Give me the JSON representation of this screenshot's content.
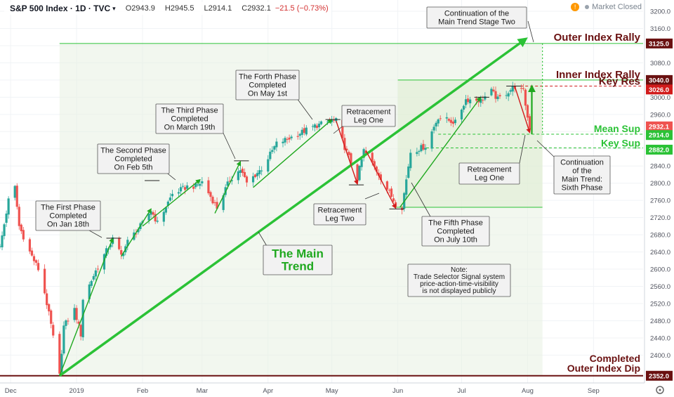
{
  "header": {
    "symbol": "S&P 500 Index · 1D · TVC",
    "open": "O2943.9",
    "high": "H2945.5",
    "low": "L2914.1",
    "close": "C2932.1",
    "change": "−21.5 (−0.73%)",
    "market_status": "Market Closed",
    "chevron_icon": "chevron-down-icon",
    "info_icon": "exclamation-icon"
  },
  "colors": {
    "up": "#26a69a",
    "down": "#ef5350",
    "trend": "#2bc236",
    "arrow_green": "#1fa81f",
    "arrow_red": "#d11b1b",
    "level": "#6a1111",
    "shade": "#e8f1e2"
  },
  "chart_data": {
    "type": "candlestick",
    "x_axis": {
      "start_date": "2018-11-26",
      "ticks": [
        {
          "label": "Dec",
          "date": "2018-12-01"
        },
        {
          "label": "2019",
          "date": "2019-01-01"
        },
        {
          "label": "Feb",
          "date": "2019-02-01"
        },
        {
          "label": "Mar",
          "date": "2019-03-01"
        },
        {
          "label": "Apr",
          "date": "2019-04-01"
        },
        {
          "label": "May",
          "date": "2019-05-01"
        },
        {
          "label": "Jun",
          "date": "2019-06-01"
        },
        {
          "label": "Jul",
          "date": "2019-07-01"
        },
        {
          "label": "Aug",
          "date": "2019-08-01"
        },
        {
          "label": "Sep",
          "date": "2019-09-01"
        }
      ]
    },
    "y_axis": {
      "ylim": [
        2305,
        3225
      ],
      "ticks": [
        2400,
        2440,
        2480,
        2520,
        2560,
        2600,
        2640,
        2680,
        2720,
        2760,
        2800,
        2840,
        2880,
        2920,
        2960,
        3000,
        3040,
        3080,
        3120,
        3160,
        3200
      ]
    },
    "price_path": [
      [
        "2018-11-26",
        2650
      ],
      [
        "2018-11-30",
        2760
      ],
      [
        "2018-12-03",
        2790
      ],
      [
        "2018-12-05",
        2700
      ],
      [
        "2018-12-10",
        2640
      ],
      [
        "2018-12-14",
        2600
      ],
      [
        "2018-12-17",
        2545
      ],
      [
        "2018-12-20",
        2470
      ],
      [
        "2018-12-24",
        2352
      ],
      [
        "2018-12-26",
        2467
      ],
      [
        "2018-12-31",
        2506
      ],
      [
        "2019-01-03",
        2448
      ],
      [
        "2019-01-04",
        2531
      ],
      [
        "2019-01-10",
        2596
      ],
      [
        "2019-01-18",
        2670
      ],
      [
        "2019-01-22",
        2632
      ],
      [
        "2019-01-25",
        2664
      ],
      [
        "2019-02-01",
        2706
      ],
      [
        "2019-02-05",
        2737
      ],
      [
        "2019-02-08",
        2707
      ],
      [
        "2019-02-15",
        2775
      ],
      [
        "2019-02-22",
        2792
      ],
      [
        "2019-02-26",
        2793
      ],
      [
        "2019-03-01",
        2803
      ],
      [
        "2019-03-08",
        2743
      ],
      [
        "2019-03-14",
        2808
      ],
      [
        "2019-03-19",
        2832
      ],
      [
        "2019-03-22",
        2800
      ],
      [
        "2019-03-29",
        2834
      ],
      [
        "2019-04-05",
        2892
      ],
      [
        "2019-04-12",
        2907
      ],
      [
        "2019-04-23",
        2933
      ],
      [
        "2019-05-01",
        2945
      ],
      [
        "2019-05-03",
        2945
      ],
      [
        "2019-05-07",
        2884
      ],
      [
        "2019-05-13",
        2812
      ],
      [
        "2019-05-16",
        2876
      ],
      [
        "2019-05-23",
        2822
      ],
      [
        "2019-05-31",
        2752
      ],
      [
        "2019-06-03",
        2744
      ],
      [
        "2019-06-07",
        2873
      ],
      [
        "2019-06-14",
        2886
      ],
      [
        "2019-06-20",
        2954
      ],
      [
        "2019-06-28",
        2941
      ],
      [
        "2019-07-03",
        2995
      ],
      [
        "2019-07-10",
        2993
      ],
      [
        "2019-07-15",
        3014
      ],
      [
        "2019-07-18",
        2995
      ],
      [
        "2019-07-26",
        3025
      ],
      [
        "2019-07-30",
        3013
      ],
      [
        "2019-08-01",
        2953
      ],
      [
        "2019-08-02",
        2932
      ]
    ],
    "levels": [
      {
        "name": "Outer Index Rally",
        "value": 3125.0,
        "badge": "3125.0"
      },
      {
        "name": "Inner Index Rally",
        "value": 3040.0,
        "badge": "3040.0"
      },
      {
        "name": "Key Res",
        "value": 3026.0,
        "badge": "3026.0"
      },
      {
        "name": "Mean Sup",
        "value": 2914.0,
        "badge": "2914.0"
      },
      {
        "name": "Key Sup",
        "value": 2882.0,
        "badge": "2882.0"
      },
      {
        "name": "Completed Outer Index Dip",
        "value": 2352.0,
        "badge": "2352.0"
      }
    ],
    "last_price": {
      "value": 2932.1,
      "badge": "2932.1"
    },
    "annotations": [
      {
        "id": "first-phase",
        "lines": [
          "The First Phase",
          "Completed",
          "On Jan 18th"
        ]
      },
      {
        "id": "second-phase",
        "lines": [
          "The Second Phase",
          "Completed",
          "On Feb 5th"
        ]
      },
      {
        "id": "third-phase",
        "lines": [
          "The Third Phase",
          "Completed",
          "On March 19th"
        ]
      },
      {
        "id": "forth-phase",
        "lines": [
          "The Forth Phase",
          "Completed",
          "On May 1st"
        ]
      },
      {
        "id": "retracement-leg-one-a",
        "lines": [
          "Retracement",
          "Leg One"
        ]
      },
      {
        "id": "retracement-leg-two",
        "lines": [
          "Retracement",
          "Leg Two"
        ]
      },
      {
        "id": "fifth-phase",
        "lines": [
          "The Fifth Phase",
          "Completed",
          "On July 10th"
        ]
      },
      {
        "id": "retracement-leg-one-b",
        "lines": [
          "Retracement",
          "Leg One"
        ]
      },
      {
        "id": "sixth-phase",
        "lines": [
          "Continuation",
          "of the",
          "Main Trend:",
          "Sixth Phase"
        ]
      },
      {
        "id": "stage-two",
        "lines": [
          "Continuation of the",
          "Main Trend Stage Two"
        ]
      },
      {
        "id": "main-trend",
        "lines": [
          "The Main",
          "Trend"
        ]
      },
      {
        "id": "note",
        "lines": [
          "Note:",
          "Trade Selector Signal system",
          "price-action-time-visibility",
          "is not displayed publicly"
        ]
      }
    ]
  }
}
